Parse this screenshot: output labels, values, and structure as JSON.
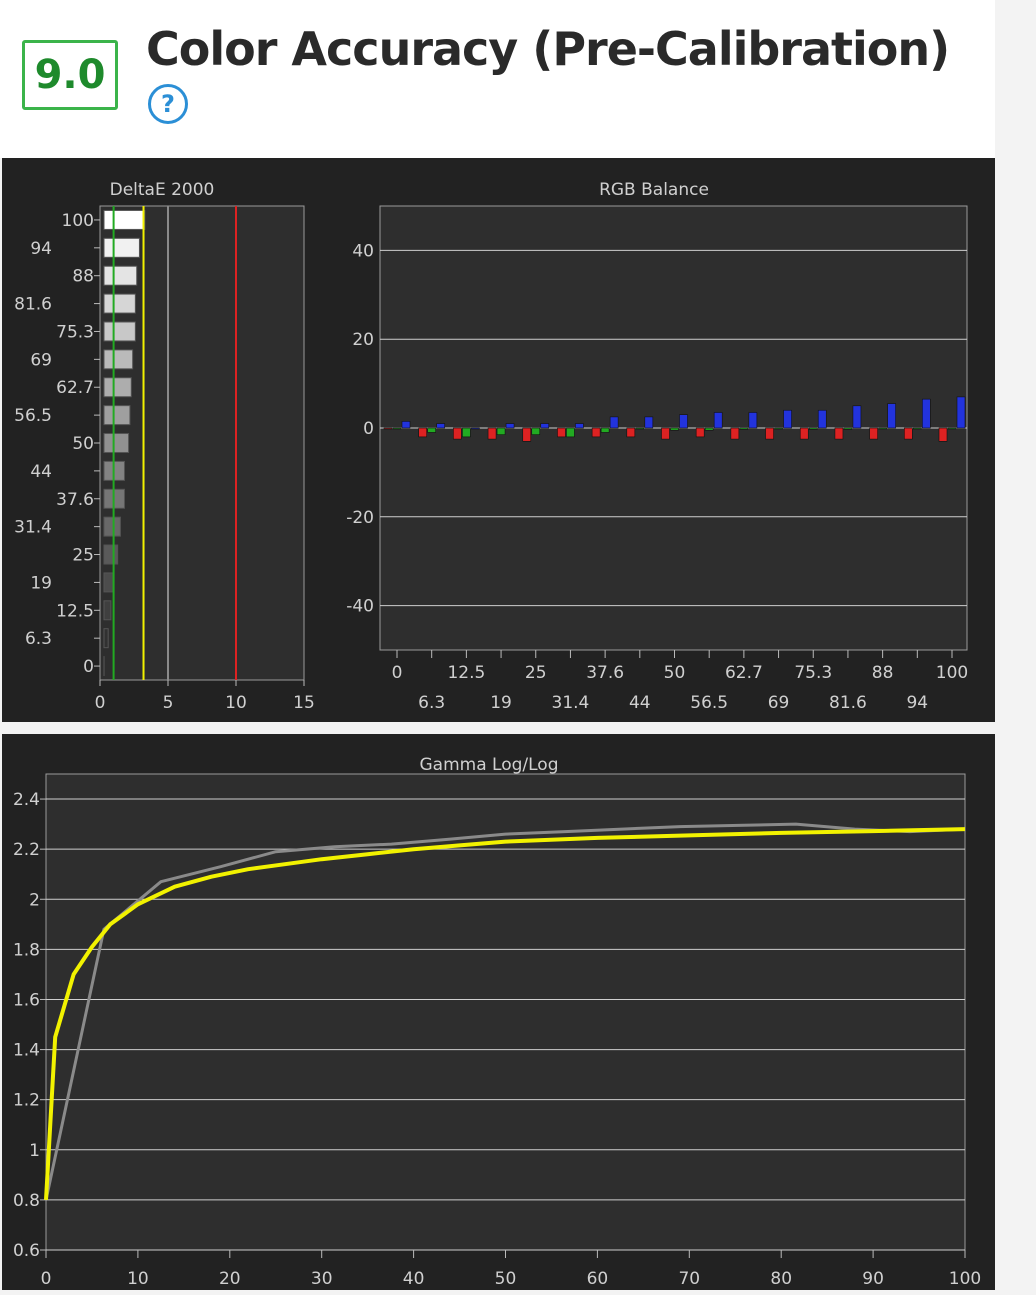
{
  "header": {
    "score": "9.0",
    "title": "Color Accuracy (Pre-Calibration)",
    "help_label": "?"
  },
  "colors": {
    "score_green": "#3bb44a",
    "help_blue": "#2b8fd6",
    "panel_bg": "#222222",
    "plot_bg": "#2e2e2e",
    "red": "#dd2222",
    "green": "#22aa22",
    "blue": "#2233dd",
    "yellow": "#f2f200",
    "gray": "#8a8a8a"
  },
  "chart_data": [
    {
      "type": "bar",
      "orientation": "horizontal",
      "title": "DeltaE 2000",
      "categories": [
        "0",
        "6.3",
        "12.5",
        "19",
        "25",
        "31.4",
        "37.6",
        "44",
        "50",
        "56.5",
        "62.7",
        "69",
        "75.3",
        "81.6",
        "88",
        "94",
        "100"
      ],
      "values": [
        0.3,
        0.6,
        0.8,
        1.0,
        1.3,
        1.5,
        1.8,
        1.8,
        2.1,
        2.2,
        2.3,
        2.4,
        2.6,
        2.6,
        2.7,
        2.9,
        3.3
      ],
      "xlim": [
        0,
        15
      ],
      "xticks": [
        "0",
        "5",
        "10",
        "15"
      ],
      "reference_lines": [
        {
          "value": 1,
          "color": "green"
        },
        {
          "value": 3.2,
          "color": "yellow"
        },
        {
          "value": 5,
          "color": "gray"
        },
        {
          "value": 10,
          "color": "red"
        }
      ]
    },
    {
      "type": "bar",
      "title": "RGB Balance",
      "categories": [
        "0",
        "6.3",
        "12.5",
        "19",
        "25",
        "31.4",
        "37.6",
        "44",
        "50",
        "56.5",
        "62.7",
        "69",
        "75.3",
        "81.6",
        "88",
        "94",
        "100"
      ],
      "series": [
        {
          "color": "red",
          "values": [
            0,
            -2,
            -2.5,
            -2.5,
            -3,
            -2,
            -2,
            -2,
            -2.5,
            -2,
            -2.5,
            -2.5,
            -2.5,
            -2.5,
            -2.5,
            -2.5,
            -3
          ]
        },
        {
          "color": "green",
          "values": [
            0,
            -1,
            -2,
            -1.5,
            -1.5,
            -2,
            -1,
            0,
            -0.5,
            -0.5,
            -0.3,
            -0.2,
            -0.3,
            -0.3,
            -0.2,
            -0.2,
            -0.2
          ]
        },
        {
          "color": "blue",
          "values": [
            1.5,
            1,
            0,
            1,
            1,
            1,
            2.5,
            2.5,
            3,
            3.5,
            3.5,
            4,
            4,
            5,
            5.5,
            6.5,
            7
          ]
        }
      ],
      "ylim": [
        -50,
        50
      ],
      "yticks": [
        "40",
        "20",
        "0",
        "-20",
        "-40"
      ],
      "xticks_top": [
        "0",
        "12.5",
        "25",
        "37.6",
        "50",
        "62.7",
        "75.3",
        "88",
        "100"
      ],
      "xticks_bottom": [
        "6.3",
        "19",
        "31.4",
        "44",
        "56.5",
        "69",
        "81.6",
        "94"
      ]
    },
    {
      "type": "line",
      "title": "Gamma Log/Log",
      "ylim": [
        0.6,
        2.5
      ],
      "xlim": [
        0,
        100
      ],
      "yticks": [
        "2.4",
        "2.2",
        "2",
        "1.8",
        "1.6",
        "1.4",
        "1.2",
        "1",
        "0.8",
        "0.6"
      ],
      "xticks": [
        "0",
        "10",
        "20",
        "30",
        "40",
        "50",
        "60",
        "70",
        "80",
        "90",
        "100"
      ],
      "series": [
        {
          "color": "gray",
          "x": [
            0,
            6.3,
            12.5,
            19,
            25,
            31.4,
            37.6,
            44,
            50,
            56.5,
            62.7,
            69,
            75.3,
            81.6,
            88,
            94,
            100
          ],
          "y": [
            0.8,
            1.88,
            2.07,
            2.13,
            2.19,
            2.21,
            2.22,
            2.24,
            2.26,
            2.27,
            2.28,
            2.29,
            2.295,
            2.3,
            2.28,
            2.27,
            2.28
          ]
        },
        {
          "color": "yellow",
          "x": [
            0,
            1,
            3,
            5,
            7,
            10,
            14,
            18,
            22,
            26,
            30,
            35,
            40,
            45,
            50,
            60,
            70,
            80,
            90,
            100
          ],
          "y": [
            0.8,
            1.45,
            1.7,
            1.81,
            1.9,
            1.98,
            2.05,
            2.09,
            2.12,
            2.14,
            2.16,
            2.18,
            2.2,
            2.215,
            2.23,
            2.245,
            2.255,
            2.265,
            2.272,
            2.28
          ]
        }
      ]
    }
  ]
}
